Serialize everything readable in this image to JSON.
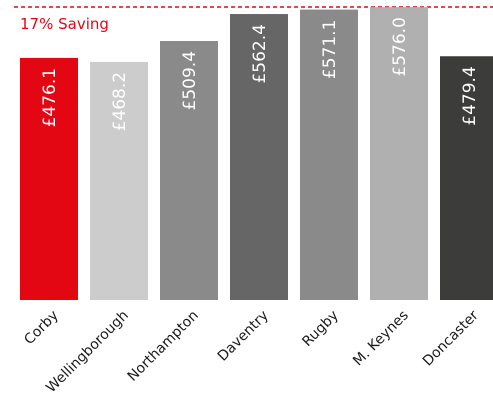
{
  "chart_data": {
    "type": "bar",
    "categories": [
      "Corby",
      "Wellingborough",
      "Northampton",
      "Daventry",
      "Rugby",
      "M. Keynes",
      "Doncaster"
    ],
    "values": [
      476.1,
      468.2,
      509.4,
      562.4,
      571.1,
      576.0,
      479.4
    ],
    "data_labels": [
      "£476.1",
      "£468.2",
      "£509.4",
      "£562.4",
      "£571.1",
      "£576.0",
      "£479.4"
    ],
    "colors": [
      "#e30613",
      "#cccccc",
      "#8a8a8a",
      "#666666",
      "#8a8a8a",
      "#b0b0b0",
      "#3c3c3b"
    ],
    "label_colors": [
      "#ffffff",
      "#ffffff",
      "#ffffff",
      "#ffffff",
      "#ffffff",
      "#ffffff",
      "#ffffff"
    ],
    "reference_line": {
      "label": "17% Saving",
      "color": "#e30613"
    },
    "ylim": [
      0,
      590
    ],
    "grid": false,
    "legend": "none"
  }
}
